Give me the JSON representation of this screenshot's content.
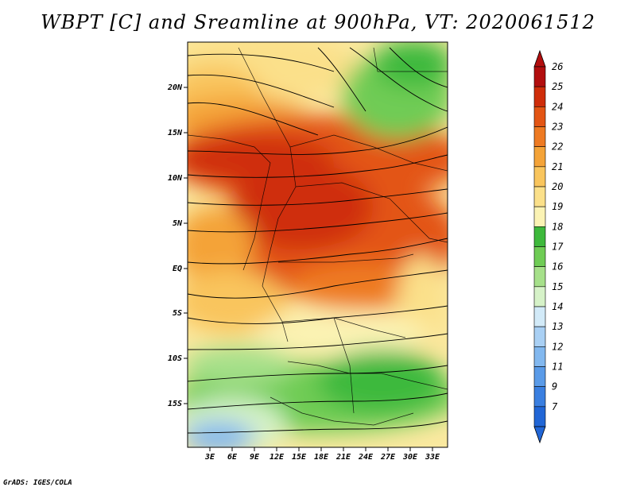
{
  "title": "WBPT [C] and Sreamline at 900hPa, VT: 2020061512",
  "footer": "GrADS: IGES/COLA",
  "map": {
    "lat_labels": [
      "20N",
      "15N",
      "10N",
      "5N",
      "EQ",
      "5S",
      "10S",
      "15S"
    ],
    "lon_labels": [
      "3E",
      "6E",
      "9E",
      "12E",
      "15E",
      "18E",
      "21E",
      "24E",
      "27E",
      "30E",
      "33E"
    ]
  },
  "colorbar": {
    "labels": [
      "7",
      "9",
      "11",
      "12",
      "13",
      "14",
      "15",
      "16",
      "17",
      "18",
      "19",
      "20",
      "21",
      "22",
      "23",
      "24",
      "25",
      "26"
    ],
    "colors": [
      "#2166d6",
      "#3a7fe0",
      "#5a9be8",
      "#82b8ef",
      "#a9d0f4",
      "#d2eaf8",
      "#d6f2c8",
      "#a6e08a",
      "#6fcc55",
      "#3eb93c",
      "#fbf3b4",
      "#fbe08a",
      "#f9c55d",
      "#f4a338",
      "#ee7a22",
      "#e35514",
      "#cf2d0a",
      "#b20e0e"
    ]
  }
}
